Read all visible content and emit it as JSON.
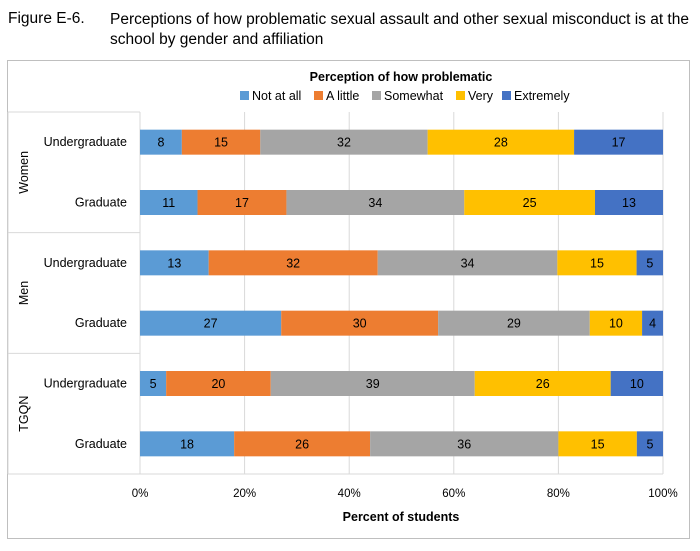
{
  "figure": {
    "number": "Figure E-6.",
    "title": "Perceptions of how problematic sexual assault and other sexual misconduct is at the school by gender and affiliation"
  },
  "chart_data": {
    "type": "bar",
    "orientation": "horizontal",
    "stacked": "percent",
    "legend_title": "Perception of how problematic",
    "legend_position": "top",
    "xlabel": "Percent of students",
    "xlim": [
      0,
      100
    ],
    "x_ticks": [
      "0%",
      "20%",
      "40%",
      "60%",
      "80%",
      "100%"
    ],
    "groups": [
      {
        "name": "Women",
        "categories": [
          "Undergraduate",
          "Graduate"
        ]
      },
      {
        "name": "Men",
        "categories": [
          "Undergraduate",
          "Graduate"
        ]
      },
      {
        "name": "TGQN",
        "categories": [
          "Undergraduate",
          "Graduate"
        ]
      }
    ],
    "series": [
      {
        "name": "Not at all",
        "color": "#5b9bd5",
        "values": [
          8,
          11,
          13,
          27,
          5,
          18
        ]
      },
      {
        "name": "A little",
        "color": "#ed7d31",
        "values": [
          15,
          17,
          32,
          30,
          20,
          26
        ]
      },
      {
        "name": "Somewhat",
        "color": "#a5a5a5",
        "values": [
          32,
          34,
          34,
          29,
          39,
          36
        ]
      },
      {
        "name": "Very",
        "color": "#ffc000",
        "values": [
          28,
          25,
          15,
          10,
          26,
          15
        ]
      },
      {
        "name": "Extremely",
        "color": "#4472c4",
        "values": [
          17,
          13,
          5,
          4,
          10,
          5
        ]
      }
    ],
    "grid": true
  }
}
